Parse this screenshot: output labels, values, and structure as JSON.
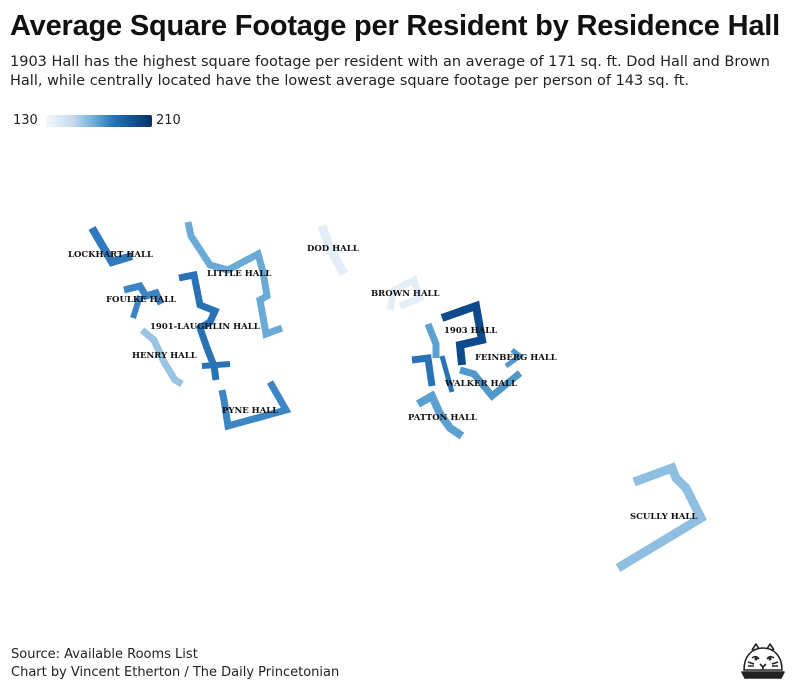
{
  "header": {
    "title": "Average Square Footage per Resident by Residence Hall",
    "subtitle": "1903 Hall has the highest square footage per resident with an average of 171 sq. ft. Dod Hall and Brown Hall, while centrally located have the lowest average square footage per person of 143 sq. ft."
  },
  "legend": {
    "min_label": "130",
    "max_label": "210",
    "colors": [
      "#f3f8fd",
      "#c6dbef",
      "#6baed6",
      "#2171b5",
      "#08306b"
    ]
  },
  "halls": [
    {
      "id": "lockhart",
      "label": "LOCKHART HALL",
      "color": "#2f78bd"
    },
    {
      "id": "little",
      "label": "LITTLE HALL",
      "color": "#6aaad6"
    },
    {
      "id": "dod",
      "label": "DOD HALL",
      "color": "#e4eef9"
    },
    {
      "id": "foulke",
      "label": "FOULKE HALL",
      "color": "#3a84c4"
    },
    {
      "id": "laughlin",
      "label": "1901-LAUGHLIN HALL",
      "color": "#2a72b6"
    },
    {
      "id": "brown",
      "label": "BROWN HALL",
      "color": "#e4eef9"
    },
    {
      "id": "hall1903",
      "label": "1903 HALL",
      "color": "#0c4a8c"
    },
    {
      "id": "henry",
      "label": "HENRY HALL",
      "color": "#99c4e3"
    },
    {
      "id": "feinberg",
      "label": "FEINBERG HALL",
      "color": "#5097cc"
    },
    {
      "id": "walker",
      "label": "WALKER HALL",
      "color": "#2a72b6"
    },
    {
      "id": "pyne",
      "label": "PYNE HALL",
      "color": "#3d86c6"
    },
    {
      "id": "patton",
      "label": "PATTON HALL",
      "color": "#5da0d2"
    },
    {
      "id": "scully",
      "label": "SCULLY HALL",
      "color": "#8fbfe0"
    }
  ],
  "footer": {
    "source": "Source: Available Rooms List",
    "credit": "Chart by Vincent Etherton / The Daily Princetonian"
  }
}
